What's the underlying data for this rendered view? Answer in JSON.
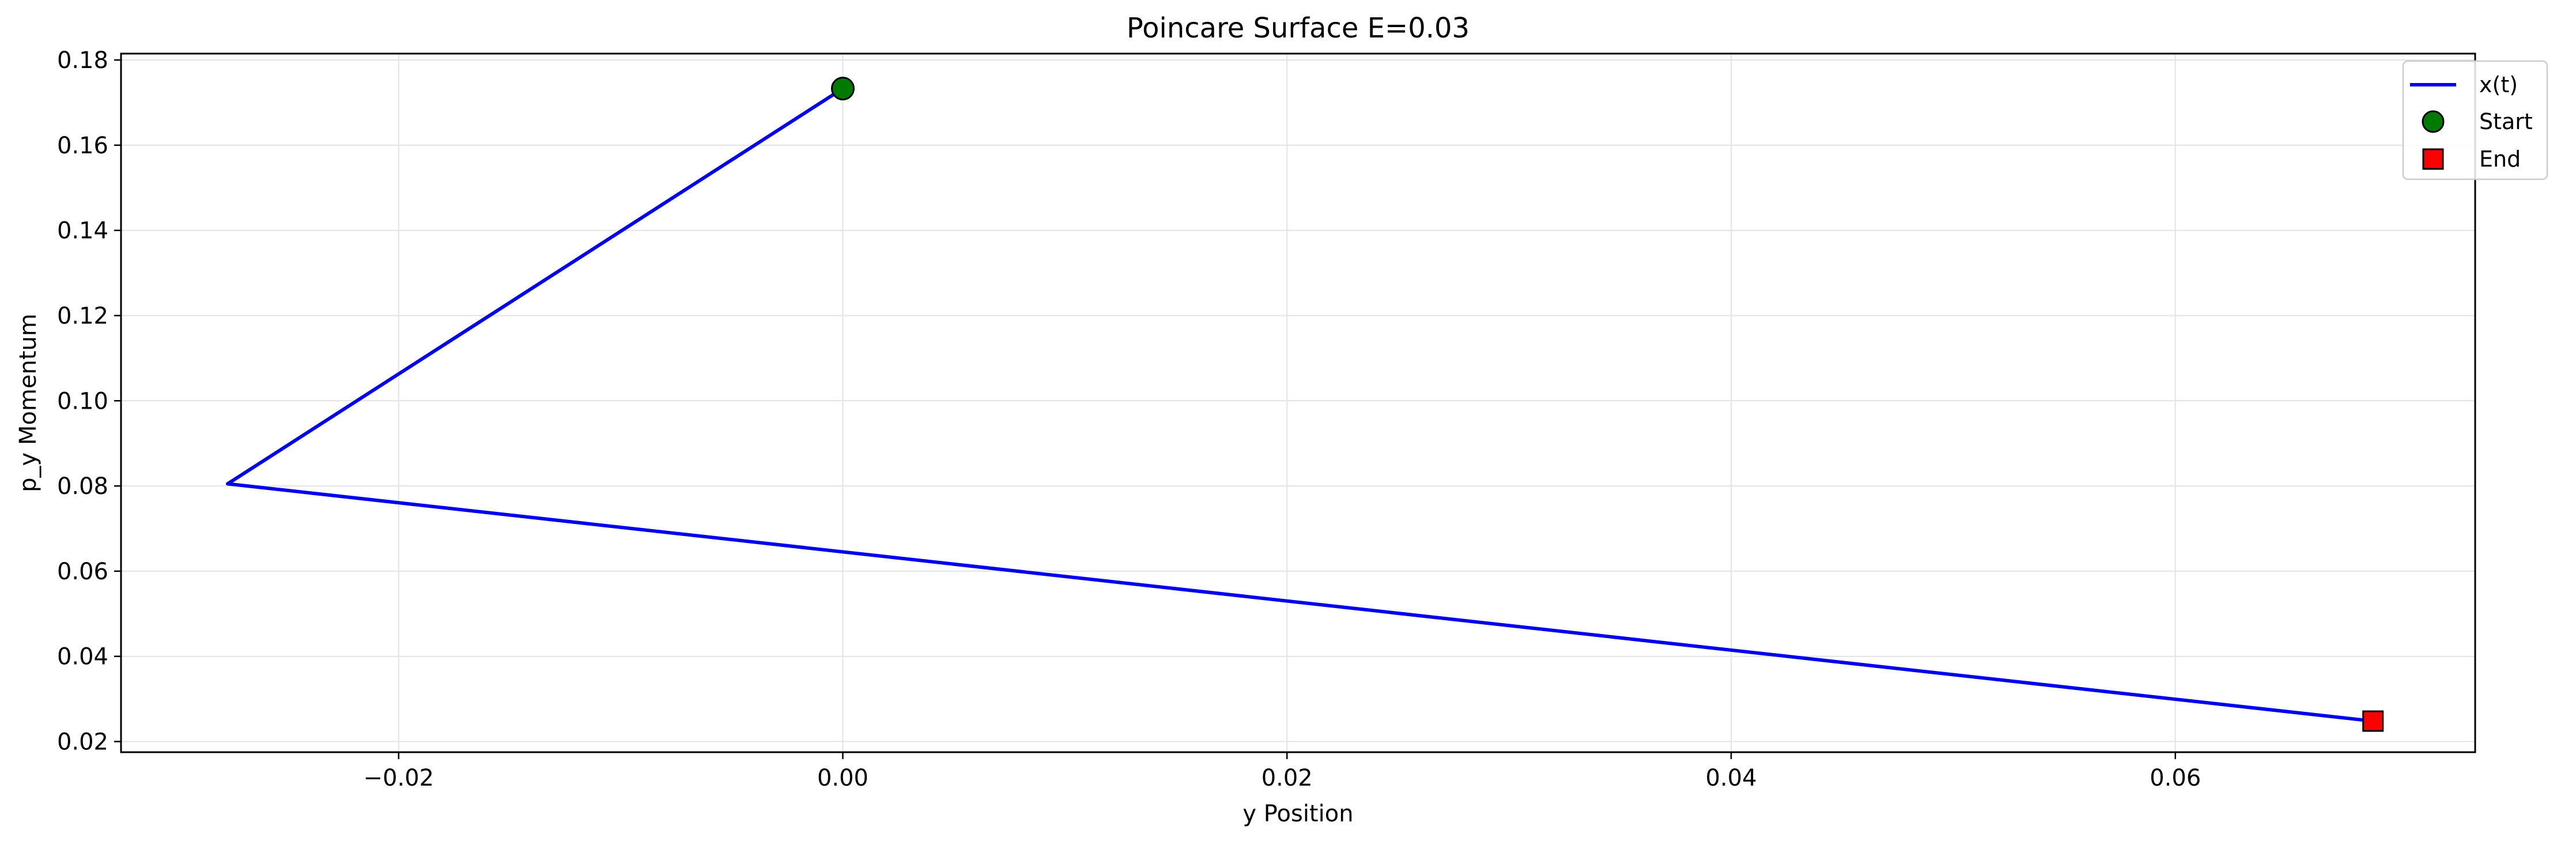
{
  "chart_data": {
    "type": "line",
    "title": "Poincare Surface E=0.03",
    "xlabel": "y Position",
    "ylabel": "p_y Momentum",
    "xlim": [
      -0.0325,
      0.0735
    ],
    "ylim": [
      0.0175,
      0.1815
    ],
    "xticks": [
      -0.02,
      0.0,
      0.02,
      0.04,
      0.06
    ],
    "xtick_labels": [
      "−0.02",
      "0.00",
      "0.02",
      "0.04",
      "0.06"
    ],
    "yticks": [
      0.02,
      0.04,
      0.06,
      0.08,
      0.1,
      0.12,
      0.14,
      0.16,
      0.18
    ],
    "ytick_labels": [
      "0.02",
      "0.04",
      "0.06",
      "0.08",
      "0.10",
      "0.12",
      "0.14",
      "0.16",
      "0.18"
    ],
    "grid": true,
    "legend_position": "top-right",
    "series": [
      {
        "name": "x(t)",
        "type": "line",
        "color": "#0000ee",
        "x": [
          0.0,
          -0.0277,
          0.0689
        ],
        "y": [
          0.1733,
          0.0805,
          0.0248
        ]
      },
      {
        "name": "Start",
        "type": "marker",
        "marker": "circle",
        "color": "#007a00",
        "x": [
          0.0
        ],
        "y": [
          0.1733
        ]
      },
      {
        "name": "End",
        "type": "marker",
        "marker": "square",
        "color": "#ff0000",
        "x": [
          0.0689
        ],
        "y": [
          0.0248
        ]
      }
    ]
  }
}
